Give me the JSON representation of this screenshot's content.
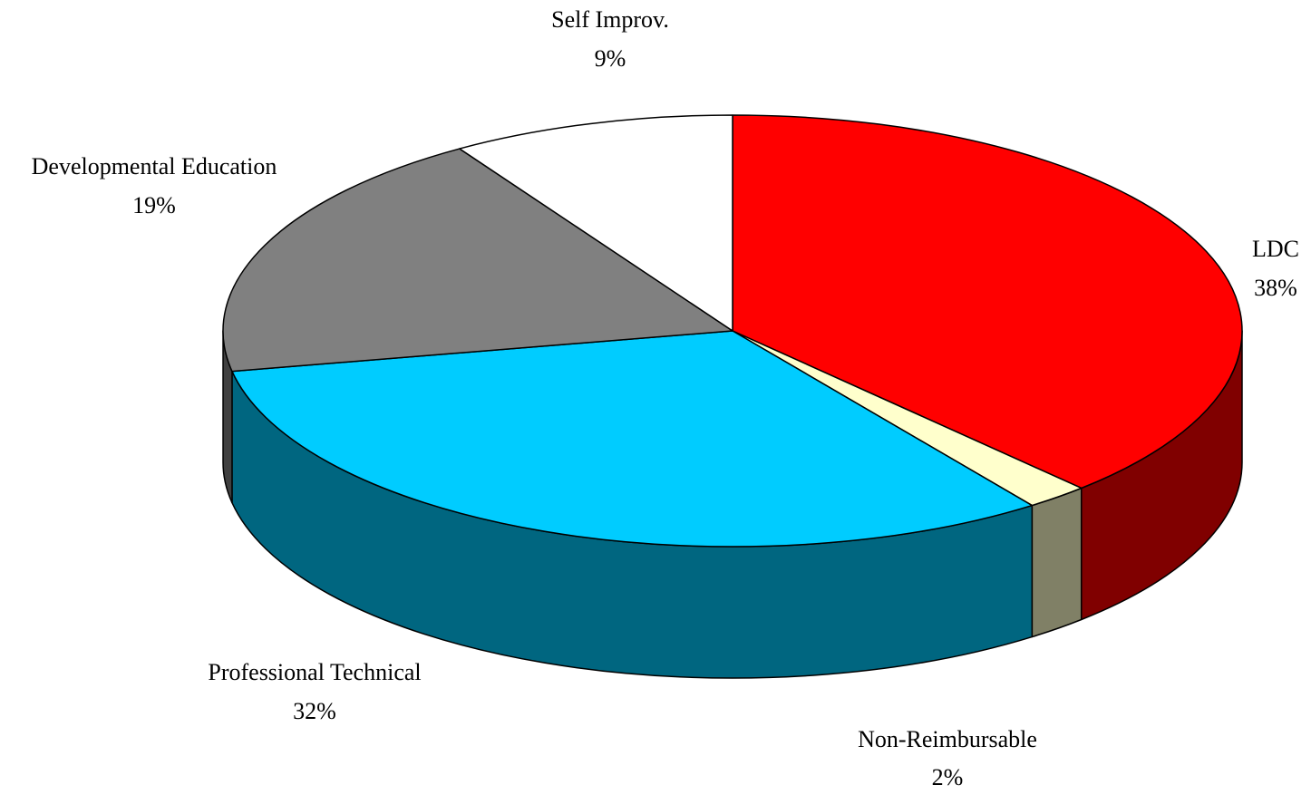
{
  "chart_data": {
    "type": "pie3d",
    "categories": [
      "LDC",
      "Non-Reimbursable",
      "Professional Technical",
      "Developmental Education",
      "Self Improv."
    ],
    "values": [
      38,
      2,
      32,
      19,
      9
    ],
    "value_labels": [
      "38%",
      "2%",
      "32%",
      "19%",
      "9%"
    ],
    "colors": [
      "#ff0000",
      "#ffffcc",
      "#00ccff",
      "#808080",
      "#ffffff"
    ]
  }
}
